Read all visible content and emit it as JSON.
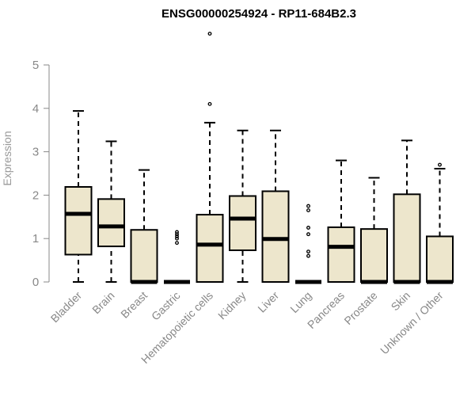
{
  "chart_data": {
    "type": "boxplot",
    "title": "ENSG00000254924 - RP11-684B2.3",
    "ylabel": "Expression",
    "xlabel": "",
    "ylim": [
      0,
      5.5
    ],
    "yticks": [
      0,
      1,
      2,
      3,
      4,
      5
    ],
    "grid": false,
    "box_color": "#ede6cc",
    "categories": [
      "Bladder",
      "Brain",
      "Breast",
      "Gastric",
      "Hematopoietic cells",
      "Kidney",
      "Liver",
      "Lung",
      "Pancreas",
      "Prostate",
      "Skin",
      "Unknown / Other"
    ],
    "boxes": [
      {
        "min": 0.0,
        "q1": 0.63,
        "median": 1.57,
        "q3": 2.19,
        "max": 3.94,
        "outliers": []
      },
      {
        "min": 0.0,
        "q1": 0.82,
        "median": 1.28,
        "q3": 1.91,
        "max": 3.24,
        "outliers": []
      },
      {
        "min": 0.0,
        "q1": 0.0,
        "median": 0.0,
        "q3": 1.2,
        "max": 2.58,
        "outliers": []
      },
      {
        "min": 0.0,
        "q1": 0.0,
        "median": 0.0,
        "q3": 0.0,
        "max": 0.0,
        "outliers": [
          0.9,
          1.0,
          1.05,
          1.1,
          1.15
        ]
      },
      {
        "min": 0.0,
        "q1": 0.0,
        "median": 0.86,
        "q3": 1.55,
        "max": 3.67,
        "outliers": [
          4.1,
          5.72
        ]
      },
      {
        "min": 0.0,
        "q1": 0.73,
        "median": 1.46,
        "q3": 1.98,
        "max": 3.49,
        "outliers": []
      },
      {
        "min": 0.0,
        "q1": 0.0,
        "median": 0.99,
        "q3": 2.09,
        "max": 3.49,
        "outliers": []
      },
      {
        "min": 0.0,
        "q1": 0.0,
        "median": 0.0,
        "q3": 0.0,
        "max": 0.0,
        "outliers": [
          0.6,
          0.7,
          1.1,
          1.25,
          1.65,
          1.75
        ]
      },
      {
        "min": 0.0,
        "q1": 0.0,
        "median": 0.81,
        "q3": 1.26,
        "max": 2.8,
        "outliers": []
      },
      {
        "min": 0.0,
        "q1": 0.0,
        "median": 0.0,
        "q3": 1.22,
        "max": 2.4,
        "outliers": []
      },
      {
        "min": 0.0,
        "q1": 0.0,
        "median": 0.0,
        "q3": 2.02,
        "max": 3.26,
        "outliers": []
      },
      {
        "min": 0.0,
        "q1": 0.0,
        "median": 0.0,
        "q3": 1.05,
        "max": 2.61,
        "outliers": [
          2.7
        ]
      }
    ]
  }
}
